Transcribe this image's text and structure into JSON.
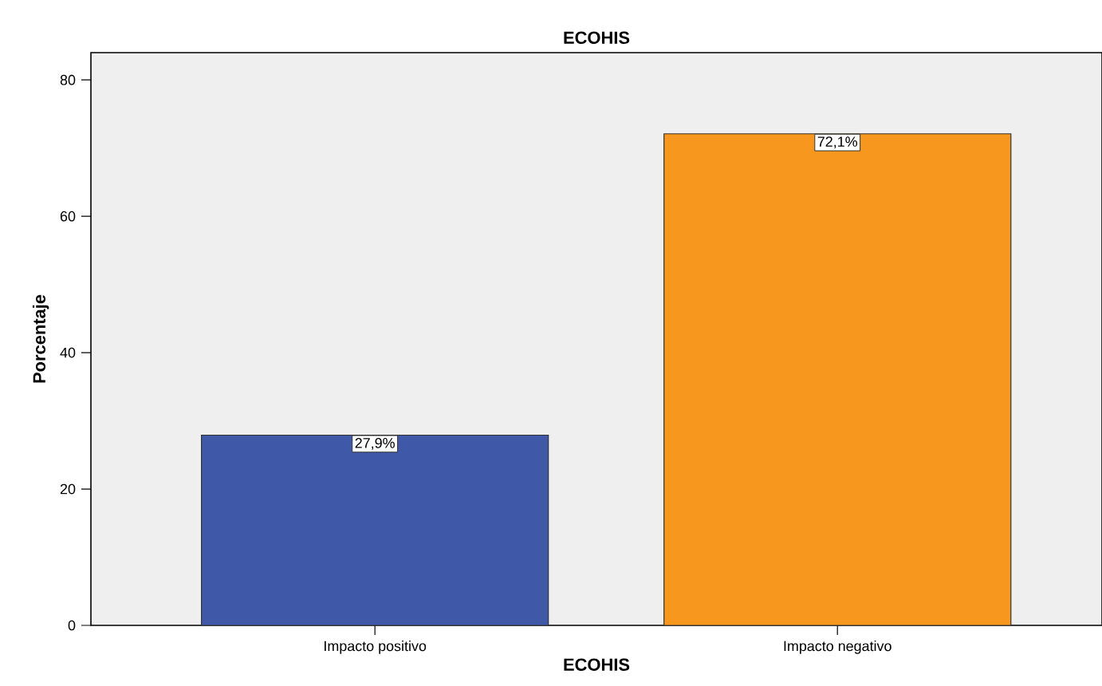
{
  "chart_data": {
    "type": "bar",
    "title": "ECOHIS",
    "xlabel": "ECOHIS",
    "ylabel": "Porcentaje",
    "categories": [
      "Impacto positivo",
      "Impacto negativo"
    ],
    "values": [
      27.9,
      72.1
    ],
    "colors": [
      "#3f58a8",
      "#f7971e"
    ],
    "value_labels": [
      "27,9%",
      "72,1%"
    ],
    "ylim": [
      0,
      84
    ],
    "yticks": [
      0,
      20,
      40,
      60,
      80
    ]
  }
}
